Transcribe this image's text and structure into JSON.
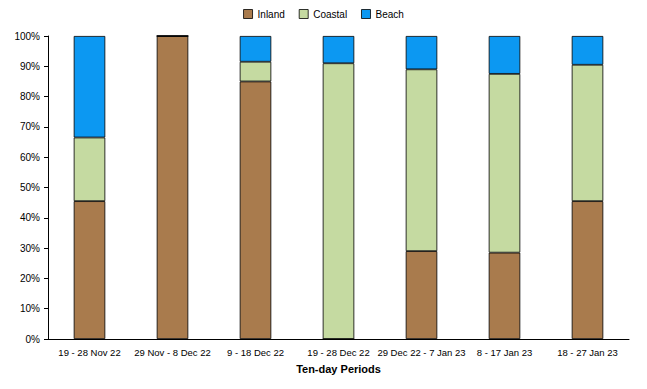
{
  "chart_data": {
    "type": "bar",
    "stacked": true,
    "grid": false,
    "legend": "top",
    "x_label": "Ten-day Periods",
    "categories": [
      "19 - 28 Nov 22",
      "29 Nov - 8 Dec 22",
      "9 - 18 Dec 22",
      "19 - 28 Dec 22",
      "29 Dec 22 - 7 Jan 23",
      "8 - 17 Jan 23",
      "18 - 27 Jan 23"
    ],
    "series": [
      {
        "name": "Inland",
        "color": "#a97b4d",
        "values": [
          45.5,
          100,
          85,
          0,
          29,
          28.5,
          45.5
        ]
      },
      {
        "name": "Coastal",
        "color": "#c5daa1",
        "values": [
          21,
          0,
          6.5,
          91,
          60,
          59,
          45
        ]
      },
      {
        "name": "Beach",
        "color": "#0c98f2",
        "values": [
          33.5,
          0,
          8.5,
          9,
          11,
          12.5,
          9.5
        ]
      }
    ],
    "ylim": [
      0,
      100
    ],
    "yticks": [
      {
        "value": 0,
        "label": "0%"
      },
      {
        "value": 10,
        "label": "10%"
      },
      {
        "value": 20,
        "label": "20%"
      },
      {
        "value": 30,
        "label": "30%"
      },
      {
        "value": 40,
        "label": "40%"
      },
      {
        "value": 50,
        "label": "50%"
      },
      {
        "value": 60,
        "label": "60%"
      },
      {
        "value": 70,
        "label": "70%"
      },
      {
        "value": 80,
        "label": "80%"
      },
      {
        "value": 90,
        "label": "90%"
      },
      {
        "value": 100,
        "label": "100%"
      }
    ]
  }
}
